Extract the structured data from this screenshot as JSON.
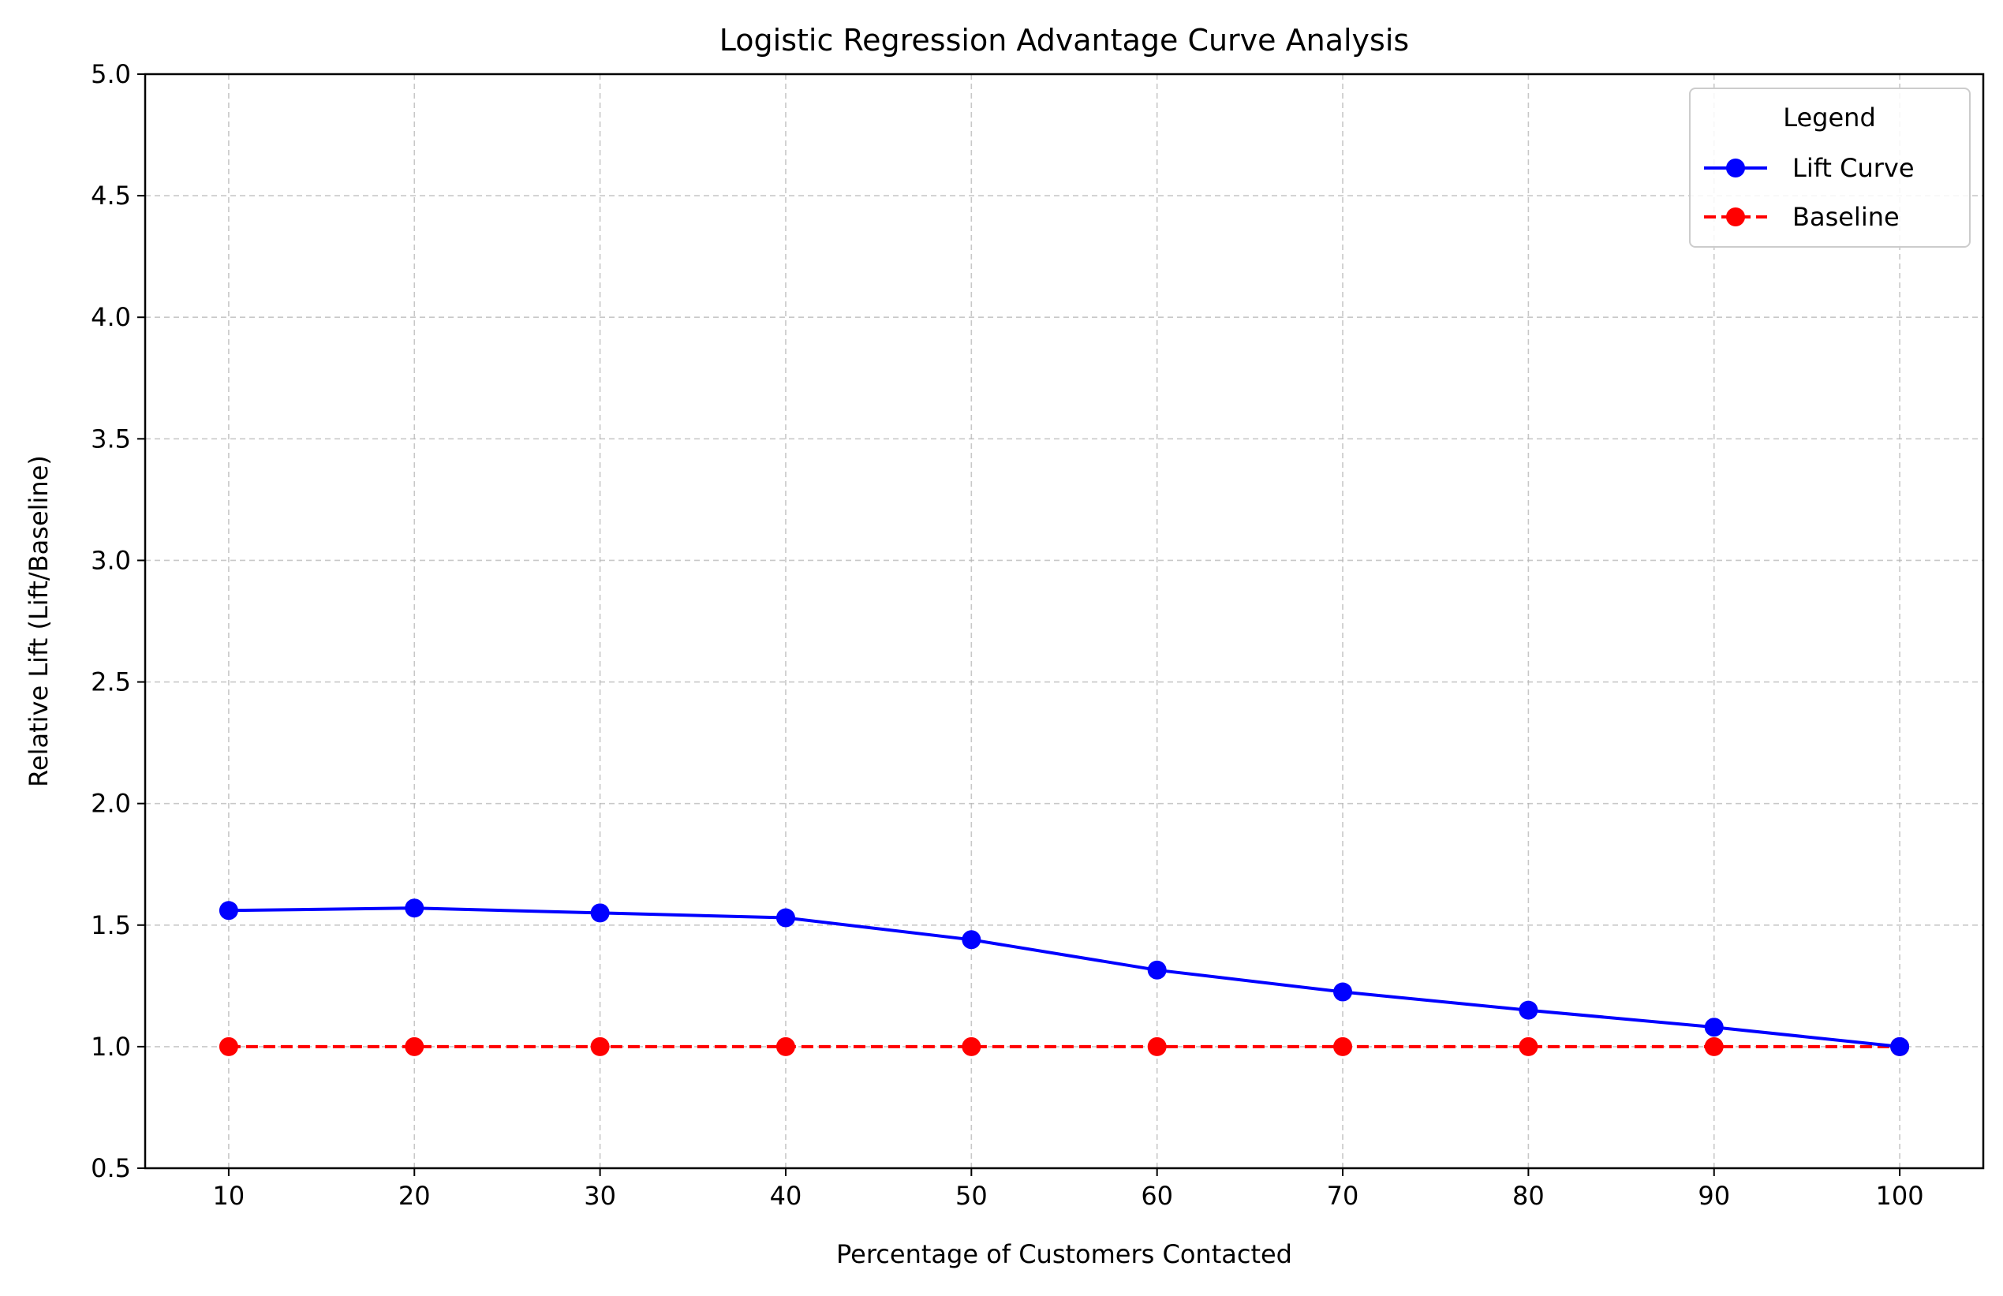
{
  "chart_data": {
    "type": "line",
    "title": "Logistic Regression Advantage Curve Analysis",
    "xlabel": "Percentage of Customers Contacted",
    "ylabel": "Relative Lift (Lift/Baseline)",
    "x": [
      10,
      20,
      30,
      40,
      50,
      60,
      70,
      80,
      90,
      100
    ],
    "xticks": [
      "10",
      "20",
      "30",
      "40",
      "50",
      "60",
      "70",
      "80",
      "90",
      "100"
    ],
    "yticks": [
      "0.5",
      "1.0",
      "1.5",
      "2.0",
      "2.5",
      "3.0",
      "3.5",
      "4.0",
      "4.5",
      "5.0"
    ],
    "xlim": [
      5.5,
      104.5
    ],
    "ylim": [
      0.5,
      5.0
    ],
    "grid": true,
    "legend": {
      "title": "Legend",
      "placement": "top-right"
    },
    "series": [
      {
        "name": "Lift Curve",
        "color": "#0000ff",
        "line_style": "solid",
        "marker": "circle",
        "values": [
          1.56,
          1.57,
          1.55,
          1.53,
          1.44,
          1.315,
          1.225,
          1.15,
          1.08,
          1.0
        ]
      },
      {
        "name": "Baseline",
        "color": "#ff0000",
        "line_style": "dashed",
        "marker": "circle",
        "values": [
          1.0,
          1.0,
          1.0,
          1.0,
          1.0,
          1.0,
          1.0,
          1.0,
          1.0,
          1.0
        ]
      }
    ]
  }
}
